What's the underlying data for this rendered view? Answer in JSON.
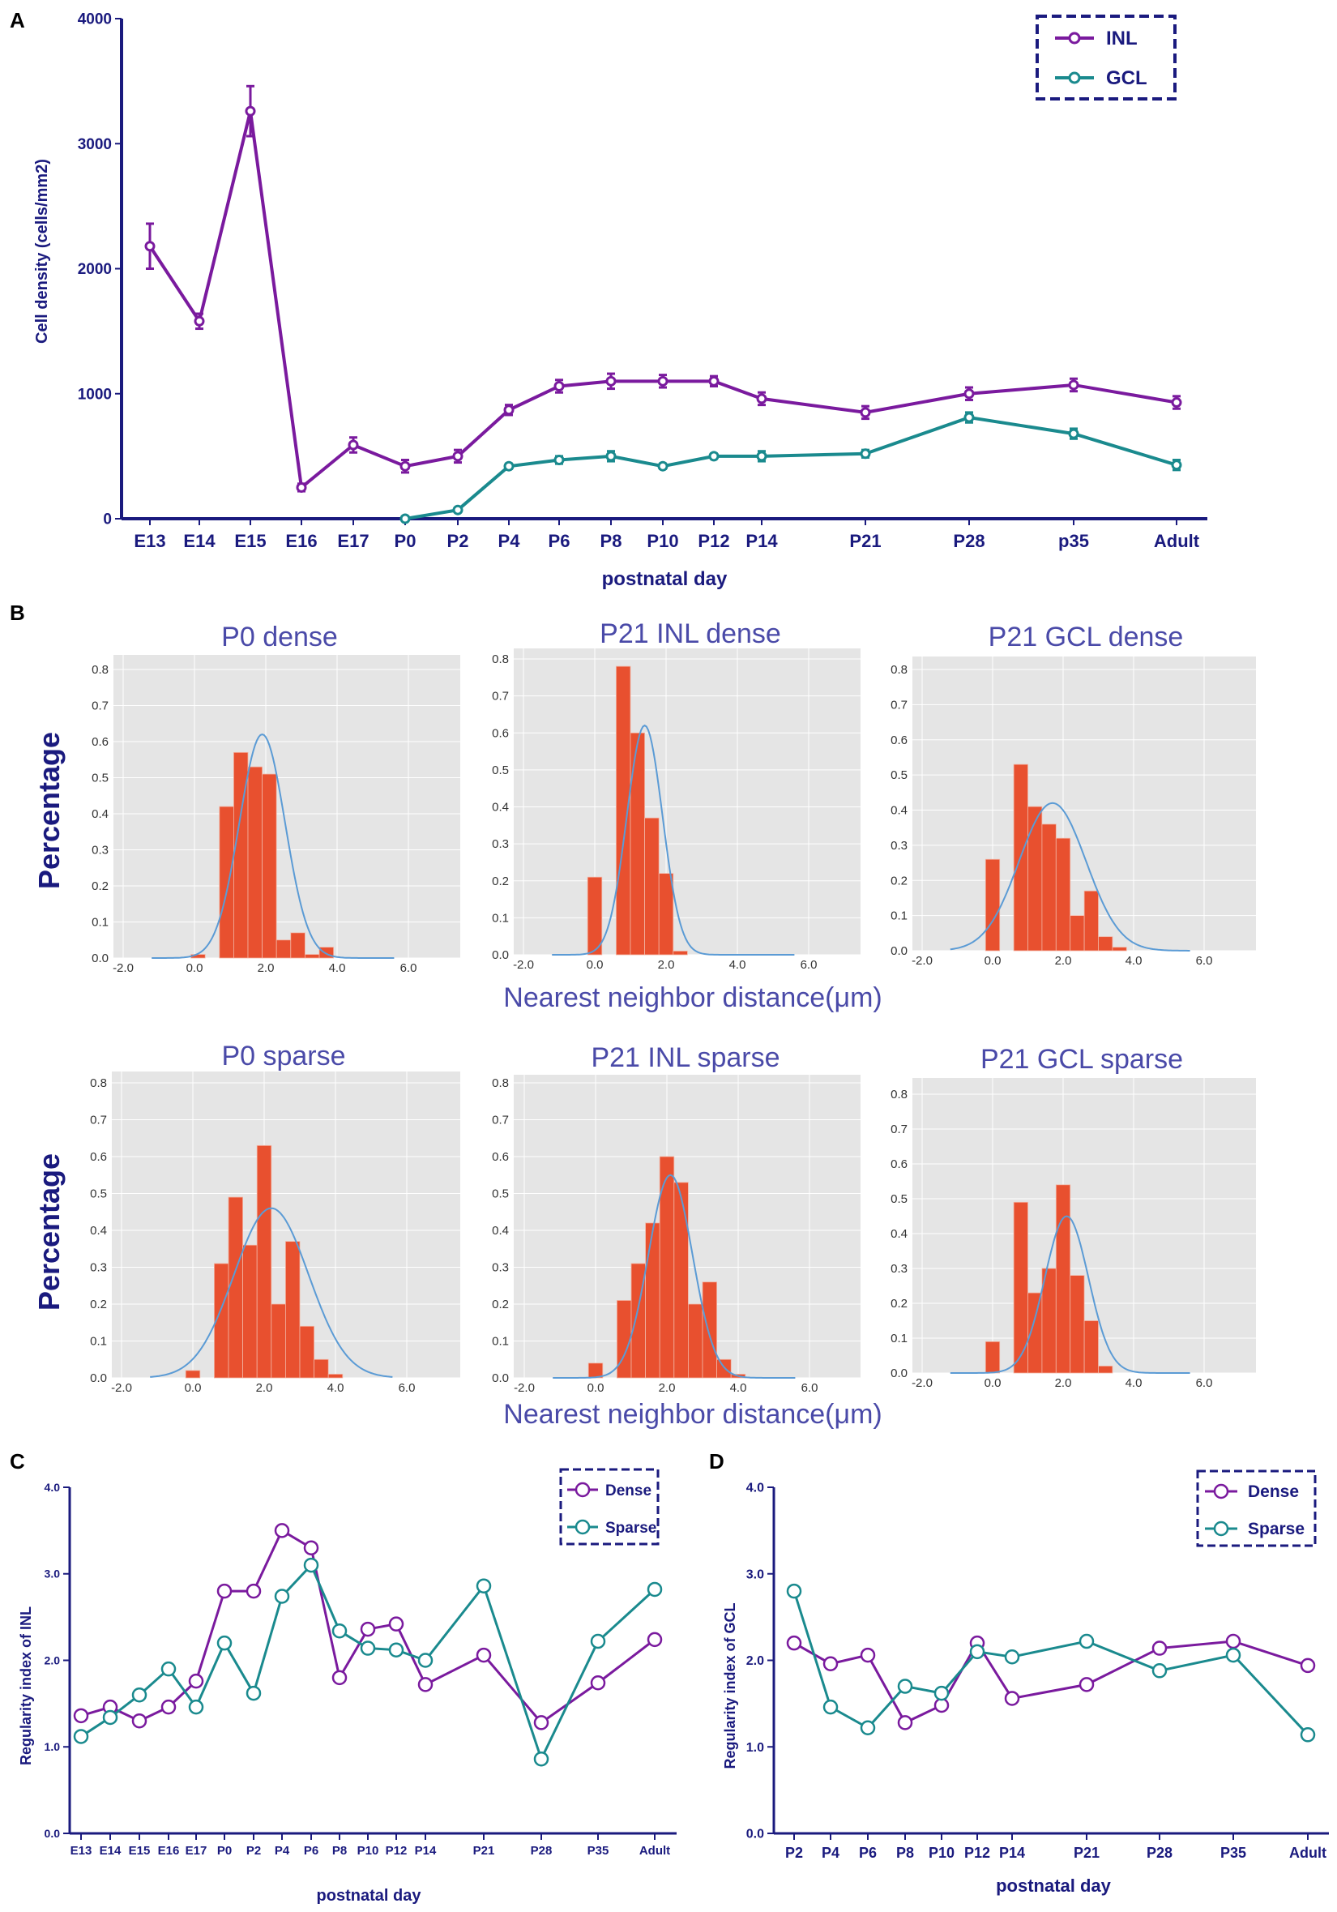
{
  "colors": {
    "navy": "#1a1a7e",
    "purple": "#7a1a9e",
    "teal": "#1a8a8e",
    "bar": "#e8502f",
    "curve": "#5b9bd5",
    "hist_bg": "#e5e5e5",
    "hist_title": "#4a4aa8"
  },
  "chart_data": [
    {
      "type": "line",
      "panel_label": "A",
      "ylabel": "Cell density (cells/mm2)",
      "xlabel": "postnatal day",
      "ylim": [
        0,
        4000
      ],
      "yticks": [
        "0",
        "1000",
        "2000",
        "3000",
        "4000"
      ],
      "categories": [
        "E13",
        "E14",
        "E15",
        "E16",
        "E17",
        "P0",
        "P2",
        "P4",
        "P6",
        "P8",
        "P10",
        "P12",
        "P14",
        "P21",
        "P28",
        "p35",
        "Adult"
      ],
      "series": [
        {
          "name": "INL",
          "values": [
            2180,
            1580,
            3260,
            250,
            590,
            420,
            500,
            870,
            1060,
            1100,
            1100,
            1100,
            960,
            850,
            1000,
            1070,
            930
          ],
          "errors": [
            180,
            60,
            200,
            30,
            60,
            50,
            50,
            40,
            50,
            60,
            50,
            40,
            50,
            50,
            50,
            50,
            50
          ]
        },
        {
          "name": "GCL",
          "values": [
            null,
            null,
            null,
            null,
            null,
            0,
            70,
            420,
            470,
            500,
            420,
            500,
            500,
            520,
            810,
            680,
            430
          ],
          "errors": [
            null,
            null,
            null,
            null,
            null,
            0,
            10,
            20,
            30,
            40,
            20,
            20,
            40,
            30,
            40,
            40,
            40
          ]
        }
      ]
    },
    {
      "type": "bar",
      "panel_label": "B",
      "title": "P0 dense",
      "ylabel": "Percentage",
      "xlabel": "Nearest neighbor distance(μm)",
      "yticks": [
        "0.0",
        "0.1",
        "0.2",
        "0.3",
        "0.4",
        "0.5",
        "0.6",
        "0.7",
        "0.8"
      ],
      "xticks": [
        "-2.0",
        "0.0",
        "2.0",
        "4.0",
        "6.0"
      ],
      "bins": [
        [
          -0.1,
          0.01
        ],
        [
          0.7,
          0.42
        ],
        [
          1.1,
          0.57
        ],
        [
          1.5,
          0.53
        ],
        [
          1.9,
          0.51
        ],
        [
          2.3,
          0.05
        ],
        [
          2.7,
          0.07
        ],
        [
          3.1,
          0.01
        ],
        [
          3.5,
          0.03
        ]
      ],
      "bin_width": 0.4,
      "fit": {
        "mean": 1.9,
        "sd": 0.64,
        "peak": 0.62
      }
    },
    {
      "type": "bar",
      "title": "P21 INL dense",
      "yticks": [
        "0.0",
        "0.1",
        "0.2",
        "0.3",
        "0.4",
        "0.5",
        "0.6",
        "0.7",
        "0.8"
      ],
      "xticks": [
        "-2.0",
        "0.0",
        "2.0",
        "4.0",
        "6.0"
      ],
      "bins": [
        [
          -0.2,
          0.21
        ],
        [
          0.2,
          0
        ],
        [
          0.6,
          0.78
        ],
        [
          1.0,
          0.6
        ],
        [
          1.4,
          0.37
        ],
        [
          1.8,
          0.22
        ],
        [
          2.2,
          0.01
        ]
      ],
      "bin_width": 0.4,
      "fit": {
        "mean": 1.4,
        "sd": 0.5,
        "peak": 0.62
      }
    },
    {
      "type": "bar",
      "title": "P21 GCL dense",
      "yticks": [
        "0.0",
        "0.1",
        "0.2",
        "0.3",
        "0.4",
        "0.5",
        "0.6",
        "0.7",
        "0.8"
      ],
      "xticks": [
        "-2.0",
        "0.0",
        "2.0",
        "4.0",
        "6.0"
      ],
      "bins": [
        [
          -0.2,
          0.26
        ],
        [
          0.2,
          0
        ],
        [
          0.6,
          0.53
        ],
        [
          1.0,
          0.41
        ],
        [
          1.4,
          0.36
        ],
        [
          1.8,
          0.32
        ],
        [
          2.2,
          0.1
        ],
        [
          2.6,
          0.17
        ],
        [
          3.0,
          0.04
        ],
        [
          3.4,
          0.01
        ]
      ],
      "bin_width": 0.4,
      "fit": {
        "mean": 1.7,
        "sd": 0.95,
        "peak": 0.42
      }
    },
    {
      "type": "bar",
      "title": "P0 sparse",
      "ylabel": "Percentage",
      "xlabel": "Nearest neighbor distance(μm)",
      "yticks": [
        "0.0",
        "0.1",
        "0.2",
        "0.3",
        "0.4",
        "0.5",
        "0.6",
        "0.7",
        "0.8"
      ],
      "xticks": [
        "-2.0",
        "0.0",
        "2.0",
        "4.0",
        "6.0"
      ],
      "bins": [
        [
          -0.2,
          0.02
        ],
        [
          0.2,
          0
        ],
        [
          0.6,
          0.31
        ],
        [
          1.0,
          0.49
        ],
        [
          1.4,
          0.36
        ],
        [
          1.8,
          0.63
        ],
        [
          2.2,
          0.2
        ],
        [
          2.6,
          0.37
        ],
        [
          3.0,
          0.14
        ],
        [
          3.4,
          0.05
        ],
        [
          3.8,
          0.01
        ]
      ],
      "bin_width": 0.4,
      "fit": {
        "mean": 2.2,
        "sd": 1.05,
        "peak": 0.46
      }
    },
    {
      "type": "bar",
      "title": "P21 INL sparse",
      "yticks": [
        "0.0",
        "0.1",
        "0.2",
        "0.3",
        "0.4",
        "0.5",
        "0.6",
        "0.7",
        "0.8"
      ],
      "xticks": [
        "-2.0",
        "0.0",
        "2.0",
        "4.0",
        "6.0"
      ],
      "bins": [
        [
          -0.2,
          0.04
        ],
        [
          0.2,
          0
        ],
        [
          0.6,
          0.21
        ],
        [
          1.0,
          0.31
        ],
        [
          1.4,
          0.42
        ],
        [
          1.8,
          0.6
        ],
        [
          2.2,
          0.53
        ],
        [
          2.6,
          0.2
        ],
        [
          3.0,
          0.26
        ],
        [
          3.4,
          0.05
        ],
        [
          3.8,
          0.01
        ]
      ],
      "bin_width": 0.4,
      "fit": {
        "mean": 2.1,
        "sd": 0.62,
        "peak": 0.55
      }
    },
    {
      "type": "bar",
      "title": "P21 GCL sparse",
      "yticks": [
        "0.0",
        "0.1",
        "0.2",
        "0.3",
        "0.4",
        "0.5",
        "0.6",
        "0.7",
        "0.8"
      ],
      "xticks": [
        "-2.0",
        "0.0",
        "2.0",
        "4.0",
        "6.0"
      ],
      "bins": [
        [
          -0.2,
          0.09
        ],
        [
          0.2,
          0
        ],
        [
          0.6,
          0.49
        ],
        [
          1.0,
          0.23
        ],
        [
          1.4,
          0.3
        ],
        [
          1.8,
          0.54
        ],
        [
          2.2,
          0.28
        ],
        [
          2.6,
          0.15
        ],
        [
          3.0,
          0.02
        ]
      ],
      "bin_width": 0.4,
      "fit": {
        "mean": 2.1,
        "sd": 0.62,
        "peak": 0.45
      }
    },
    {
      "type": "line",
      "panel_label": "C",
      "ylabel": "Regularity index of INL",
      "xlabel": "postnatal day",
      "ylim": [
        0,
        4
      ],
      "yticks": [
        "0.0",
        "1.0",
        "2.0",
        "3.0",
        "4.0"
      ],
      "categories": [
        "E13",
        "E14",
        "E15",
        "E16",
        "E17",
        "P0",
        "P2",
        "P4",
        "P6",
        "P8",
        "P10",
        "P12",
        "P14",
        "P21",
        "P28",
        "P35",
        "Adult"
      ],
      "series": [
        {
          "name": "Dense",
          "values": [
            1.36,
            1.46,
            1.3,
            1.46,
            1.76,
            2.8,
            2.8,
            3.5,
            3.3,
            1.8,
            2.36,
            2.42,
            1.72,
            2.06,
            1.28,
            1.74,
            2.24
          ]
        },
        {
          "name": "Sparse",
          "values": [
            1.12,
            1.34,
            1.6,
            1.9,
            1.46,
            2.2,
            1.62,
            2.74,
            3.1,
            2.34,
            2.14,
            2.12,
            2.0,
            2.86,
            0.86,
            2.22,
            2.82
          ]
        }
      ]
    },
    {
      "type": "line",
      "panel_label": "D",
      "ylabel": "Regularity index of GCL",
      "xlabel": "postnatal day",
      "ylim": [
        0,
        4
      ],
      "yticks": [
        "0.0",
        "1.0",
        "2.0",
        "3.0",
        "4.0"
      ],
      "categories": [
        "P2",
        "P4",
        "P6",
        "P8",
        "P10",
        "P12",
        "P14",
        "P21",
        "P28",
        "P35",
        "Adult"
      ],
      "series": [
        {
          "name": "Dense",
          "values": [
            2.2,
            1.96,
            2.06,
            1.28,
            1.48,
            2.2,
            1.56,
            1.72,
            2.14,
            2.22,
            1.94
          ]
        },
        {
          "name": "Sparse",
          "values": [
            2.8,
            1.46,
            1.22,
            1.7,
            1.62,
            2.1,
            2.04,
            2.22,
            1.88,
            2.06,
            1.14
          ]
        }
      ]
    }
  ]
}
